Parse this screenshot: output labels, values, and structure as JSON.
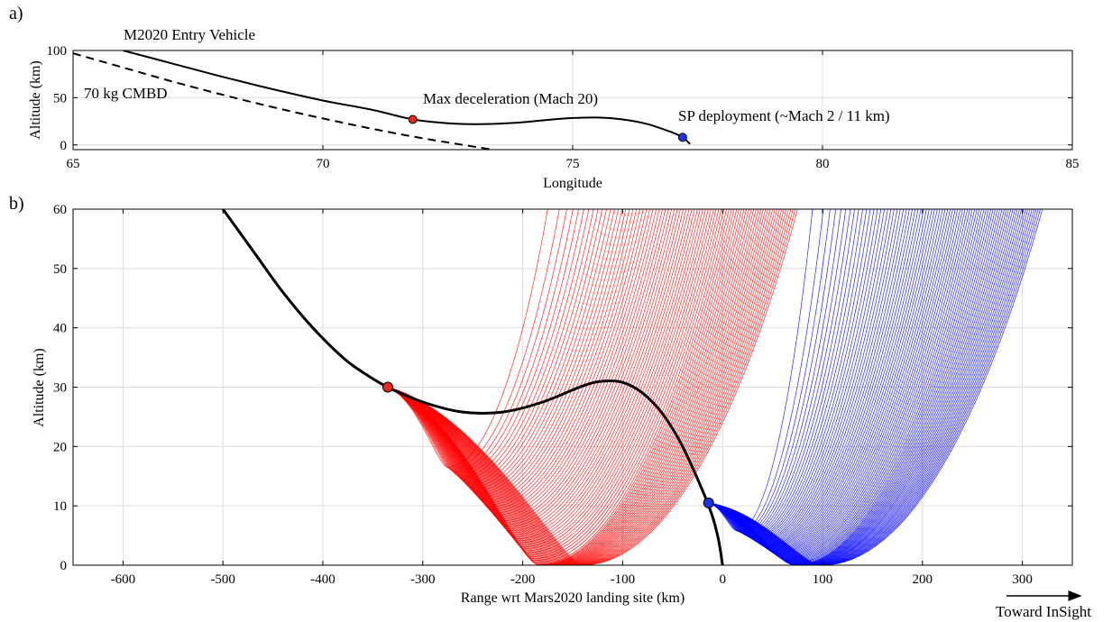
{
  "chart_data": [
    {
      "type": "line",
      "panel_label": "a)",
      "xlabel": "Longitude",
      "ylabel": "Altitude (km)",
      "xlim": [
        65,
        85
      ],
      "ylim": [
        -5,
        100
      ],
      "xticks": [
        65,
        70,
        75,
        80,
        85
      ],
      "yticks": [
        0,
        50,
        100
      ],
      "grid": true,
      "series": [
        {
          "name": "M2020 Entry Vehicle",
          "style": "solid",
          "color": "#000000",
          "x": [
            66.0,
            67.0,
            68.0,
            69.0,
            70.0,
            71.0,
            71.8,
            72.5,
            73.0,
            73.5,
            74.0,
            74.5,
            75.0,
            75.5,
            76.0,
            76.5,
            77.0,
            77.2,
            77.35
          ],
          "y": [
            100,
            86,
            72,
            59,
            47,
            37,
            27,
            23,
            22,
            22.5,
            24,
            26.5,
            28.5,
            29,
            27,
            22,
            13,
            8,
            1
          ]
        },
        {
          "name": "70 kg CMBD",
          "style": "dashed",
          "color": "#000000",
          "x": [
            65.0,
            66.0,
            67.0,
            68.0,
            69.0,
            70.0,
            71.0,
            72.0,
            73.4
          ],
          "y": [
            97,
            82,
            67,
            53,
            40,
            28,
            17,
            7,
            -5
          ]
        }
      ],
      "points": [
        {
          "label": "Max deceleration (Mach 20)",
          "x": 71.8,
          "y": 27,
          "color": "#e8281e"
        },
        {
          "label": "SP deployment (~Mach 2 / 11 km)",
          "x": 77.2,
          "y": 8,
          "color": "#1e32e8"
        }
      ]
    },
    {
      "type": "line",
      "panel_label": "b)",
      "xlabel": "Range wrt Mars2020 landing site (km)",
      "ylabel": "Altitude (km)",
      "xlim": [
        -650,
        350
      ],
      "ylim": [
        0,
        60
      ],
      "xticks": [
        -600,
        -500,
        -400,
        -300,
        -200,
        -100,
        0,
        100,
        200,
        300
      ],
      "yticks": [
        0,
        10,
        20,
        30,
        40,
        50,
        60
      ],
      "grid": true,
      "main_trajectory": {
        "color": "#000000",
        "x": [
          -500,
          -470,
          -440,
          -410,
          -380,
          -360,
          -335,
          -300,
          -260,
          -220,
          -180,
          -140,
          -120,
          -100,
          -80,
          -60,
          -40,
          -15,
          -5,
          0
        ],
        "y": [
          60,
          53,
          46,
          40,
          35,
          32.5,
          30,
          27.5,
          25.8,
          25.8,
          27.5,
          30.2,
          31,
          30.8,
          29,
          25.5,
          20,
          10.5,
          5,
          0
        ]
      },
      "release_points": [
        {
          "x": -335,
          "y": 30,
          "color": "#e8281e"
        },
        {
          "x": -14,
          "y": 10.5,
          "color": "#1e32e8"
        }
      ],
      "dispersion_sets": [
        {
          "color": "#ff0000",
          "origin": [
            -335,
            30
          ],
          "count": 80,
          "ground_x_range": [
            -275,
            -140
          ],
          "top_x_range": [
            -175,
            75
          ]
        },
        {
          "color": "#0000ff",
          "origin": [
            -14,
            10.5
          ],
          "count": 80,
          "ground_x_range": [
            15,
            100
          ],
          "top_x_range": [
            90,
            320
          ]
        }
      ],
      "annotation": "Toward InSight"
    }
  ]
}
